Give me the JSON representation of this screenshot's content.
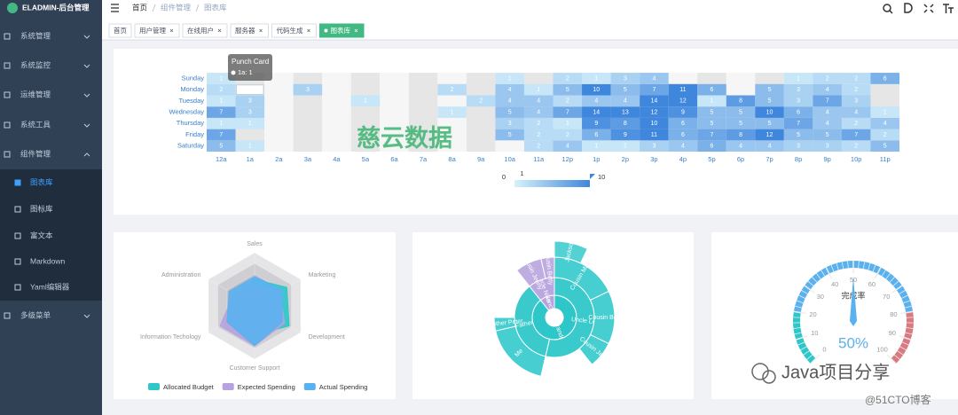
{
  "sidebar": {
    "brand": "ELADMIN-后台管理",
    "menu": [
      "系统管理",
      "系统监控",
      "运维管理",
      "系统工具",
      "组件管理"
    ],
    "submenu": [
      "图表库",
      "图标库",
      "富文本",
      "Markdown",
      "Yaml编辑器"
    ],
    "menu_last": "多级菜单"
  },
  "breadcrumb": [
    "首页",
    "组件管理",
    "图表库"
  ],
  "tags": [
    "首页",
    "用户管理",
    "在线用户",
    "服务器",
    "代码生成",
    "图表库"
  ],
  "chart_data": [
    {
      "type": "heatmap",
      "y_categories": [
        "Saturday",
        "Friday",
        "Thursday",
        "Wednesday",
        "Tuesday",
        "Monday",
        "Sunday"
      ],
      "categories": [
        "12a",
        "1a",
        "2a",
        "3a",
        "4a",
        "5a",
        "6a",
        "7a",
        "8a",
        "9a",
        "10a",
        "11a",
        "12p",
        "1p",
        "2p",
        "3p",
        "4p",
        "5p",
        "6p",
        "7p",
        "8p",
        "9p",
        "10p",
        "11p"
      ],
      "values": [
        [
          5,
          1,
          null,
          null,
          null,
          null,
          null,
          null,
          null,
          null,
          null,
          2,
          4,
          1,
          1,
          3,
          4,
          6,
          4,
          4,
          3,
          3,
          2,
          5
        ],
        [
          7,
          null,
          null,
          null,
          null,
          null,
          null,
          null,
          null,
          null,
          5,
          2,
          2,
          6,
          9,
          11,
          6,
          7,
          8,
          12,
          5,
          5,
          7,
          2
        ],
        [
          1,
          1,
          null,
          null,
          null,
          null,
          null,
          null,
          null,
          null,
          3,
          2,
          1,
          9,
          8,
          10,
          6,
          5,
          5,
          5,
          7,
          4,
          2,
          4
        ],
        [
          7,
          3,
          null,
          null,
          null,
          null,
          null,
          null,
          1,
          null,
          5,
          4,
          7,
          14,
          13,
          12,
          9,
          5,
          5,
          10,
          6,
          4,
          4,
          1
        ],
        [
          1,
          3,
          null,
          null,
          null,
          1,
          null,
          null,
          null,
          2,
          4,
          4,
          2,
          4,
          4,
          14,
          12,
          1,
          8,
          5,
          3,
          7,
          3,
          null
        ],
        [
          2,
          1,
          null,
          3,
          null,
          null,
          null,
          null,
          2,
          null,
          4,
          1,
          5,
          10,
          5,
          7,
          11,
          6,
          null,
          5,
          3,
          4,
          2,
          null
        ],
        [
          1,
          null,
          null,
          null,
          null,
          null,
          null,
          null,
          null,
          null,
          1,
          null,
          2,
          1,
          3,
          4,
          null,
          null,
          null,
          null,
          1,
          2,
          2,
          6
        ]
      ],
      "visual_map": {
        "min": 0,
        "max": 10,
        "indicator": 1,
        "colors": [
          "#d6f1fb",
          "#3f86dd"
        ]
      },
      "tooltip": {
        "title": "Punch Card",
        "text": "1a: 1"
      }
    },
    {
      "type": "radar",
      "indicators": [
        {
          "name": "Sales",
          "max": 10000
        },
        {
          "name": "Administration",
          "max": 20000
        },
        {
          "name": "Information Techology",
          "max": 20000
        },
        {
          "name": "Customer Support",
          "max": 20000
        },
        {
          "name": "Development",
          "max": 20000
        },
        {
          "name": "Marketing",
          "max": 20000
        }
      ],
      "series": [
        {
          "name": "Allocated Budget",
          "color": "#2ec7c9",
          "values": [
            5000,
            7000,
            12000,
            11000,
            15000,
            14000
          ]
        },
        {
          "name": "Expected Spending",
          "color": "#b6a2de",
          "values": [
            4000,
            9000,
            15000,
            15000,
            13000,
            11000
          ]
        },
        {
          "name": "Actual Spending",
          "color": "#5ab1ef",
          "values": [
            5500,
            11000,
            12000,
            15000,
            12000,
            12000
          ]
        }
      ]
    },
    {
      "type": "sunburst",
      "colors": [
        "#2ec7c9",
        "#b6a2de"
      ],
      "data": [
        {
          "name": "Grandpa",
          "children": [
            {
              "name": "Uncle Leo",
              "value": 15,
              "children": [
                {
                  "name": "Cousin Mary",
                  "value": 5,
                  "children": [
                    {
                      "name": "Jackson",
                      "value": 2
                    }
                  ]
                },
                {
                  "name": "Cousin Ben",
                  "value": 4
                },
                {
                  "name": "Cousin Jack",
                  "value": 2
                }
              ]
            },
            {
              "name": "Father",
              "value": 10,
              "children": [
                {
                  "name": "Me",
                  "value": 5
                },
                {
                  "name": "Brother Peter",
                  "value": 1
                }
              ]
            }
          ]
        },
        {
          "name": "Nancy",
          "children": [
            {
              "name": "Uncle Nike",
              "children": [
                {
                  "name": "Cousin Jenny",
                  "value": 2
                },
                {
                  "name": "Cousin Betty",
                  "value": 1
                }
              ]
            }
          ]
        }
      ]
    },
    {
      "type": "gauge",
      "title": "完成率",
      "value": 50,
      "value_label": "50%",
      "lim": [
        0,
        100
      ],
      "ticks": [
        0,
        10,
        20,
        30,
        40,
        50,
        60,
        70,
        80,
        90,
        100
      ],
      "bands": [
        {
          "to": 20,
          "color": "#2ec7c9"
        },
        {
          "to": 80,
          "color": "#5ab1ef"
        },
        {
          "to": 100,
          "color": "#d87a80"
        }
      ],
      "pointer_color": "#5ab1ef"
    }
  ],
  "watermarks": [
    "慈云数据",
    "Java项目分享",
    "@51CTO博客"
  ]
}
